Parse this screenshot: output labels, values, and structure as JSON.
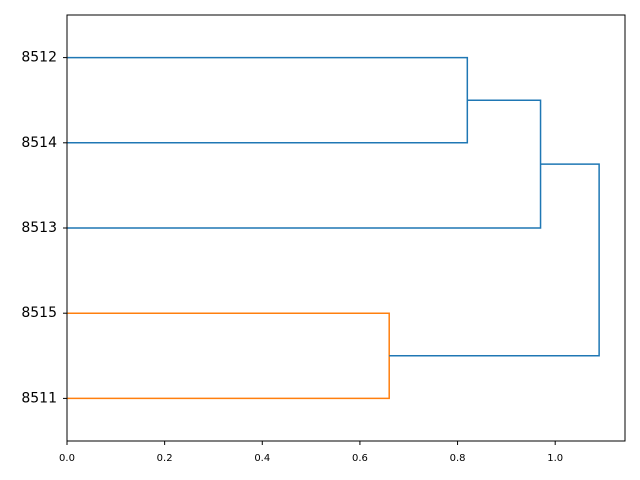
{
  "chart_data": {
    "type": "dendrogram",
    "orientation": "right",
    "tree": {
      "height": 1.09,
      "color": "#1f77b4",
      "children": [
        {
          "height": 0.97,
          "color": "#1f77b4",
          "children": [
            {
              "height": 0.82,
              "color": "#1f77b4",
              "children": [
                "8512",
                "8514"
              ]
            },
            "8513"
          ]
        },
        {
          "height": 0.66,
          "color": "#ff7f0e",
          "children": [
            "8515",
            "8511"
          ]
        }
      ]
    },
    "xlim": [
      0,
      1.143
    ],
    "xticks": [
      {
        "value": 0,
        "label": "0.0"
      },
      {
        "value": 0.2,
        "label": "0.2"
      },
      {
        "value": 0.4,
        "label": "0.4"
      },
      {
        "value": 0.6,
        "label": "0.6"
      },
      {
        "value": 0.8,
        "label": "0.8"
      },
      {
        "value": 1.0,
        "label": "1.0"
      }
    ]
  }
}
